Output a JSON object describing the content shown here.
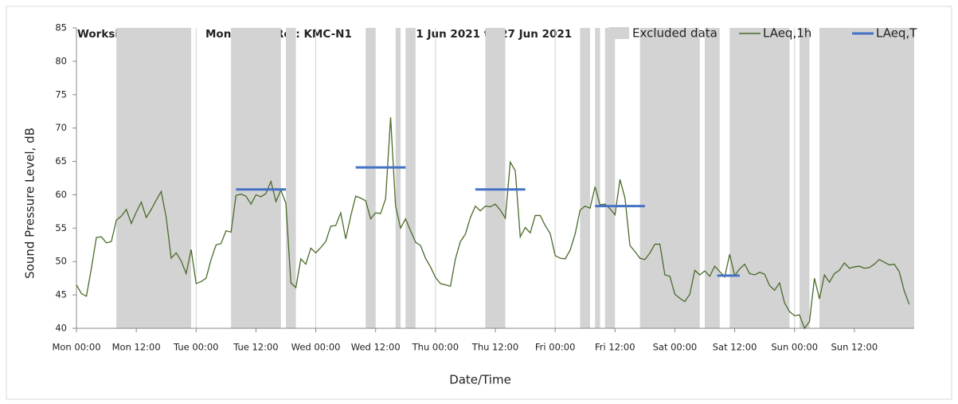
{
  "chart_data": {
    "type": "line",
    "title_parts": [
      "Worksite: KMC",
      "Monitoring Ref: KMC-N1",
      "21 Jun 2021 to 27 Jun 2021"
    ],
    "xlabel": "Date/Time",
    "ylabel": "Sound Pressure Level, dB",
    "xlim": [
      0,
      168
    ],
    "xticks": [
      {
        "value": 0,
        "label": "Mon 00:00"
      },
      {
        "value": 12,
        "label": "Mon 12:00"
      },
      {
        "value": 24,
        "label": "Tue 00:00"
      },
      {
        "value": 36,
        "label": "Tue 12:00"
      },
      {
        "value": 48,
        "label": "Wed 00:00"
      },
      {
        "value": 60,
        "label": "Wed 12:00"
      },
      {
        "value": 72,
        "label": "Thu 00:00"
      },
      {
        "value": 84,
        "label": "Thu 12:00"
      },
      {
        "value": 96,
        "label": "Fri 00:00"
      },
      {
        "value": 108,
        "label": "Fri 12:00"
      },
      {
        "value": 120,
        "label": "Sat 00:00"
      },
      {
        "value": 132,
        "label": "Sat 12:00"
      },
      {
        "value": 144,
        "label": "Sun 00:00"
      },
      {
        "value": 156,
        "label": "Sun 12:00"
      }
    ],
    "ylim": [
      40,
      85
    ],
    "yticks": [
      40,
      45,
      50,
      55,
      60,
      65,
      70,
      75,
      80,
      85
    ],
    "x": [
      0,
      1,
      2,
      3,
      4,
      5,
      6,
      7,
      8,
      9,
      10,
      11,
      12,
      13,
      14,
      15,
      16,
      17,
      18,
      19,
      20,
      21,
      22,
      23,
      24,
      25,
      26,
      27,
      28,
      29,
      30,
      31,
      32,
      33,
      34,
      35,
      36,
      37,
      38,
      39,
      40,
      41,
      42,
      43,
      44,
      45,
      46,
      47,
      48,
      49,
      50,
      51,
      52,
      53,
      54,
      55,
      56,
      57,
      58,
      59,
      60,
      61,
      62,
      63,
      64,
      65,
      66,
      67,
      68,
      69,
      70,
      71,
      72,
      73,
      74,
      75,
      76,
      77,
      78,
      79,
      80,
      81,
      82,
      83,
      84,
      85,
      86,
      87,
      88,
      89,
      90,
      91,
      92,
      93,
      94,
      95,
      96,
      97,
      98,
      99,
      100,
      101,
      102,
      103,
      104,
      105,
      106,
      107,
      108,
      109,
      110,
      111,
      112,
      113,
      114,
      115,
      116,
      117,
      118,
      119,
      120,
      121,
      122,
      123,
      124,
      125,
      126,
      127,
      128,
      129,
      130,
      131,
      132,
      133,
      134,
      135,
      136,
      137,
      138,
      139,
      140,
      141,
      142,
      143,
      144,
      145,
      146,
      147,
      148,
      149,
      150,
      151,
      152,
      153,
      154,
      155,
      156,
      157,
      158,
      159,
      160,
      161,
      162,
      163,
      164,
      165,
      166,
      167
    ],
    "series": [
      {
        "name": "LAeq,1h",
        "color": "#4a6b2a",
        "values": [
          46.5,
          45.2,
          44.8,
          49,
          53.6,
          53.7,
          52.8,
          53,
          56.2,
          56.8,
          57.8,
          55.7,
          57.4,
          58.9,
          56.6,
          57.8,
          59.2,
          60.5,
          56.6,
          50.5,
          51.3,
          50.1,
          48.2,
          51.8,
          46.7,
          47,
          47.5,
          50.3,
          52.5,
          52.7,
          54.6,
          54.4,
          59.9,
          60.1,
          59.8,
          58.6,
          60,
          59.7,
          60.2,
          62,
          59,
          60.7,
          58.7,
          46.8,
          46.1,
          50.4,
          49.6,
          52,
          51.3,
          52.1,
          53,
          55.3,
          55.4,
          57.3,
          53.4,
          56.8,
          59.8,
          59.5,
          59.1,
          56.4,
          57.3,
          57.2,
          59.4,
          71.6,
          58.3,
          55,
          56.4,
          54.6,
          52.9,
          52.4,
          50.5,
          49.2,
          47.6,
          46.7,
          46.5,
          46.3,
          50.4,
          53,
          54.1,
          56.6,
          58.3,
          57.6,
          58.3,
          58.2,
          58.6,
          57.7,
          56.5,
          64.9,
          63.6,
          53.7,
          55.1,
          54.3,
          56.9,
          56.9,
          55.4,
          54.2,
          50.9,
          50.5,
          50.4,
          51.7,
          54.1,
          57.7,
          58.3,
          58,
          61.2,
          58.5,
          58.6,
          57.9,
          57,
          62.3,
          59.5,
          52.4,
          51.5,
          50.5,
          50.3,
          51.3,
          52.6,
          52.6,
          48,
          47.8,
          45.1,
          44.5,
          44,
          45.1,
          48.7,
          48,
          48.6,
          47.8,
          49.3,
          48.5,
          47.7,
          51.1,
          47.9,
          48.9,
          49.6,
          48.2,
          48,
          48.4,
          48.1,
          46.4,
          45.7,
          46.8,
          43.8,
          42.5,
          41.9,
          42,
          40,
          41,
          47.5,
          44.4,
          48,
          46.9,
          48.2,
          48.7,
          49.8,
          49,
          49.2,
          49.3,
          49,
          49.1,
          49.6,
          50.3,
          49.9,
          49.5,
          49.6,
          48.5,
          45.6,
          43.6
        ]
      }
    ],
    "excluded": {
      "name": "Excluded data",
      "color": "#d3d3d3",
      "ranges": [
        [
          8,
          23
        ],
        [
          31,
          41
        ],
        [
          42,
          44
        ],
        [
          58,
          60
        ],
        [
          64,
          65
        ],
        [
          66,
          68
        ],
        [
          82,
          86
        ],
        [
          101,
          103
        ],
        [
          104,
          105
        ],
        [
          106,
          108
        ],
        [
          113,
          125
        ],
        [
          126,
          129
        ],
        [
          131,
          143
        ],
        [
          145,
          147
        ],
        [
          149,
          168
        ]
      ]
    },
    "periods": {
      "name": "LAeq,T",
      "color": "#4472c4",
      "segments": [
        {
          "start": 32,
          "end": 42,
          "value": 60.8
        },
        {
          "start": 56,
          "end": 66,
          "value": 64.1
        },
        {
          "start": 80,
          "end": 90,
          "value": 60.8
        },
        {
          "start": 104,
          "end": 114,
          "value": 58.3
        },
        {
          "start": 128.5,
          "end": 133,
          "value": 47.9
        }
      ]
    }
  }
}
